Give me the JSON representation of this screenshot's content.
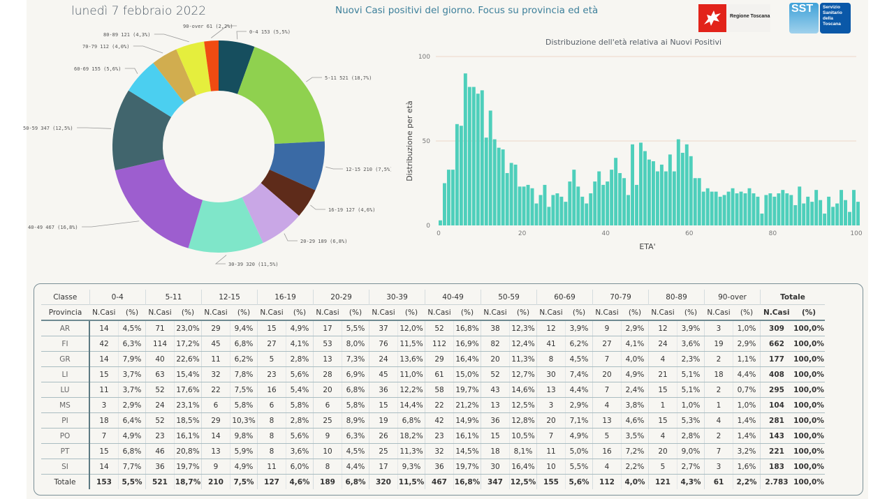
{
  "header": {
    "date": "lunedì 7 febbraio 2022",
    "title": "Nuovi Casi positivi del giorno. Focus su provincia ed età",
    "logo_regione": "Regione Toscana",
    "logo_sst_short": "SST",
    "logo_sst_lines": [
      "Servizio",
      "Sanitario",
      "della",
      "Toscana"
    ]
  },
  "chart_data": [
    {
      "type": "pie",
      "subtype": "donut",
      "title": "",
      "categories": [
        "0-4",
        "5-11",
        "12-15",
        "16-19",
        "20-29",
        "30-39",
        "40-49",
        "50-59",
        "60-69",
        "70-79",
        "80-89",
        "90-over"
      ],
      "values": [
        153,
        521,
        210,
        127,
        189,
        320,
        467,
        347,
        155,
        112,
        121,
        61
      ],
      "percent_labels": [
        "5,5%",
        "18,7%",
        "7,5%",
        "4,6%",
        "6,8%",
        "11,5%",
        "16,8%",
        "12,5%",
        "5,6%",
        "4,0%",
        "4,3%",
        "2,2%"
      ],
      "colors": [
        "#164e5e",
        "#8fd14f",
        "#3a6aa5",
        "#5e2b1a",
        "#c9a7e6",
        "#7fe6c9",
        "#9d5ecf",
        "#41656d",
        "#4bcff0",
        "#d1ad4f",
        "#e5ee3d",
        "#f04b12"
      ],
      "labels": [
        "0-4 153 (5,5%)",
        "5-11 521 (18,7%)",
        "12-15 210 (7,5%)",
        "16-19 127 (4,6%)",
        "20-29 189 (6,8%)",
        "30-39 320 (11,5%)",
        "40-49 467 (16,8%)",
        "50-59 347 (12,5%)",
        "60-69 155 (5,6%)",
        "70-79 112 (4,0%)",
        "80-89 121 (4,3%)",
        "90-over 61 (2,2%)"
      ]
    },
    {
      "type": "bar",
      "title": "Distribuzione dell'età relativa ai Nuovi Positivi",
      "xlabel": "ETA'",
      "ylabel": "Distribuzione per età",
      "xlim": [
        0,
        100
      ],
      "ylim": [
        0,
        100
      ],
      "xticks": [
        0,
        20,
        40,
        60,
        80,
        100
      ],
      "yticks": [
        0,
        50,
        100
      ],
      "grid": true,
      "color": "#4ecfbb",
      "x": [
        0,
        1,
        2,
        3,
        4,
        5,
        6,
        7,
        8,
        9,
        10,
        11,
        12,
        13,
        14,
        15,
        16,
        17,
        18,
        19,
        20,
        21,
        22,
        23,
        24,
        25,
        26,
        27,
        28,
        29,
        30,
        31,
        32,
        33,
        34,
        35,
        36,
        37,
        38,
        39,
        40,
        41,
        42,
        43,
        44,
        45,
        46,
        47,
        48,
        49,
        50,
        51,
        52,
        53,
        54,
        55,
        56,
        57,
        58,
        59,
        60,
        61,
        62,
        63,
        64,
        65,
        66,
        67,
        68,
        69,
        70,
        71,
        72,
        73,
        74,
        75,
        76,
        77,
        78,
        79,
        80,
        81,
        82,
        83,
        84,
        85,
        86,
        87,
        88,
        89,
        90,
        91,
        92,
        93,
        94,
        95,
        96,
        97,
        98,
        99,
        100
      ],
      "values": [
        3,
        25,
        33,
        33,
        60,
        59,
        90,
        82,
        82,
        78,
        80,
        52,
        68,
        51,
        46,
        45,
        31,
        37,
        36,
        23,
        23,
        24,
        22,
        13,
        18,
        24,
        11,
        18,
        19,
        17,
        14,
        26,
        33,
        23,
        17,
        13,
        19,
        26,
        32,
        24,
        26,
        33,
        40,
        31,
        28,
        18,
        48,
        24,
        49,
        44,
        39,
        38,
        32,
        36,
        32,
        42,
        32,
        51,
        43,
        48,
        41,
        28,
        28,
        20,
        22,
        20,
        20,
        17,
        18,
        20,
        22,
        19,
        20,
        19,
        22,
        19,
        17,
        7,
        18,
        19,
        17,
        19,
        21,
        19,
        18,
        12,
        23,
        13,
        17,
        14,
        21,
        15,
        7,
        17,
        11,
        13,
        21,
        15,
        8,
        21,
        14
      ]
    }
  ],
  "table": {
    "header_classe": "Classe",
    "header_provincia": "Provincia",
    "groups": [
      "0-4",
      "5-11",
      "12-15",
      "16-19",
      "20-29",
      "30-39",
      "40-49",
      "50-59",
      "60-69",
      "70-79",
      "80-89",
      "90-over"
    ],
    "total_group": "Totale",
    "sub_n": "N.Casi",
    "sub_p": "(%)",
    "rows": [
      {
        "prov": "AR",
        "cells": [
          [
            "14",
            "4,5%"
          ],
          [
            "71",
            "23,0%"
          ],
          [
            "29",
            "9,4%"
          ],
          [
            "15",
            "4,9%"
          ],
          [
            "17",
            "5,5%"
          ],
          [
            "37",
            "12,0%"
          ],
          [
            "52",
            "16,8%"
          ],
          [
            "38",
            "12,3%"
          ],
          [
            "12",
            "3,9%"
          ],
          [
            "9",
            "2,9%"
          ],
          [
            "12",
            "3,9%"
          ],
          [
            "3",
            "1,0%"
          ]
        ],
        "tot": [
          "309",
          "100,0%"
        ]
      },
      {
        "prov": "FI",
        "cells": [
          [
            "42",
            "6,3%"
          ],
          [
            "114",
            "17,2%"
          ],
          [
            "45",
            "6,8%"
          ],
          [
            "27",
            "4,1%"
          ],
          [
            "53",
            "8,0%"
          ],
          [
            "76",
            "11,5%"
          ],
          [
            "112",
            "16,9%"
          ],
          [
            "82",
            "12,4%"
          ],
          [
            "41",
            "6,2%"
          ],
          [
            "27",
            "4,1%"
          ],
          [
            "24",
            "3,6%"
          ],
          [
            "19",
            "2,9%"
          ]
        ],
        "tot": [
          "662",
          "100,0%"
        ]
      },
      {
        "prov": "GR",
        "cells": [
          [
            "14",
            "7,9%"
          ],
          [
            "40",
            "22,6%"
          ],
          [
            "11",
            "6,2%"
          ],
          [
            "5",
            "2,8%"
          ],
          [
            "13",
            "7,3%"
          ],
          [
            "24",
            "13,6%"
          ],
          [
            "29",
            "16,4%"
          ],
          [
            "20",
            "11,3%"
          ],
          [
            "8",
            "4,5%"
          ],
          [
            "7",
            "4,0%"
          ],
          [
            "4",
            "2,3%"
          ],
          [
            "2",
            "1,1%"
          ]
        ],
        "tot": [
          "177",
          "100,0%"
        ]
      },
      {
        "prov": "LI",
        "cells": [
          [
            "15",
            "3,7%"
          ],
          [
            "63",
            "15,4%"
          ],
          [
            "32",
            "7,8%"
          ],
          [
            "23",
            "5,6%"
          ],
          [
            "28",
            "6,9%"
          ],
          [
            "45",
            "11,0%"
          ],
          [
            "61",
            "15,0%"
          ],
          [
            "52",
            "12,7%"
          ],
          [
            "30",
            "7,4%"
          ],
          [
            "20",
            "4,9%"
          ],
          [
            "21",
            "5,1%"
          ],
          [
            "18",
            "4,4%"
          ]
        ],
        "tot": [
          "408",
          "100,0%"
        ]
      },
      {
        "prov": "LU",
        "cells": [
          [
            "11",
            "3,7%"
          ],
          [
            "52",
            "17,6%"
          ],
          [
            "22",
            "7,5%"
          ],
          [
            "16",
            "5,4%"
          ],
          [
            "20",
            "6,8%"
          ],
          [
            "36",
            "12,2%"
          ],
          [
            "58",
            "19,7%"
          ],
          [
            "43",
            "14,6%"
          ],
          [
            "13",
            "4,4%"
          ],
          [
            "7",
            "2,4%"
          ],
          [
            "15",
            "5,1%"
          ],
          [
            "2",
            "0,7%"
          ]
        ],
        "tot": [
          "295",
          "100,0%"
        ]
      },
      {
        "prov": "MS",
        "cells": [
          [
            "3",
            "2,9%"
          ],
          [
            "24",
            "23,1%"
          ],
          [
            "6",
            "5,8%"
          ],
          [
            "6",
            "5,8%"
          ],
          [
            "6",
            "5,8%"
          ],
          [
            "15",
            "14,4%"
          ],
          [
            "22",
            "21,2%"
          ],
          [
            "13",
            "12,5%"
          ],
          [
            "3",
            "2,9%"
          ],
          [
            "4",
            "3,8%"
          ],
          [
            "1",
            "1,0%"
          ],
          [
            "1",
            "1,0%"
          ]
        ],
        "tot": [
          "104",
          "100,0%"
        ]
      },
      {
        "prov": "PI",
        "cells": [
          [
            "18",
            "6,4%"
          ],
          [
            "52",
            "18,5%"
          ],
          [
            "29",
            "10,3%"
          ],
          [
            "8",
            "2,8%"
          ],
          [
            "25",
            "8,9%"
          ],
          [
            "19",
            "6,8%"
          ],
          [
            "42",
            "14,9%"
          ],
          [
            "36",
            "12,8%"
          ],
          [
            "20",
            "7,1%"
          ],
          [
            "13",
            "4,6%"
          ],
          [
            "15",
            "5,3%"
          ],
          [
            "4",
            "1,4%"
          ]
        ],
        "tot": [
          "281",
          "100,0%"
        ]
      },
      {
        "prov": "PO",
        "cells": [
          [
            "7",
            "4,9%"
          ],
          [
            "23",
            "16,1%"
          ],
          [
            "14",
            "9,8%"
          ],
          [
            "8",
            "5,6%"
          ],
          [
            "9",
            "6,3%"
          ],
          [
            "26",
            "18,2%"
          ],
          [
            "23",
            "16,1%"
          ],
          [
            "15",
            "10,5%"
          ],
          [
            "7",
            "4,9%"
          ],
          [
            "5",
            "3,5%"
          ],
          [
            "4",
            "2,8%"
          ],
          [
            "2",
            "1,4%"
          ]
        ],
        "tot": [
          "143",
          "100,0%"
        ]
      },
      {
        "prov": "PT",
        "cells": [
          [
            "15",
            "6,8%"
          ],
          [
            "46",
            "20,8%"
          ],
          [
            "13",
            "5,9%"
          ],
          [
            "8",
            "3,6%"
          ],
          [
            "10",
            "4,5%"
          ],
          [
            "25",
            "11,3%"
          ],
          [
            "32",
            "14,5%"
          ],
          [
            "18",
            "8,1%"
          ],
          [
            "11",
            "5,0%"
          ],
          [
            "16",
            "7,2%"
          ],
          [
            "20",
            "9,0%"
          ],
          [
            "7",
            "3,2%"
          ]
        ],
        "tot": [
          "221",
          "100,0%"
        ]
      },
      {
        "prov": "SI",
        "cells": [
          [
            "14",
            "7,7%"
          ],
          [
            "36",
            "19,7%"
          ],
          [
            "9",
            "4,9%"
          ],
          [
            "11",
            "6,0%"
          ],
          [
            "8",
            "4,4%"
          ],
          [
            "17",
            "9,3%"
          ],
          [
            "36",
            "19,7%"
          ],
          [
            "30",
            "16,4%"
          ],
          [
            "10",
            "5,5%"
          ],
          [
            "4",
            "2,2%"
          ],
          [
            "5",
            "2,7%"
          ],
          [
            "3",
            "1,6%"
          ]
        ],
        "tot": [
          "183",
          "100,0%"
        ]
      }
    ],
    "total_row": {
      "prov": "Totale",
      "cells": [
        [
          "153",
          "5,5%"
        ],
        [
          "521",
          "18,7%"
        ],
        [
          "210",
          "7,5%"
        ],
        [
          "127",
          "4,6%"
        ],
        [
          "189",
          "6,8%"
        ],
        [
          "320",
          "11,5%"
        ],
        [
          "467",
          "16,8%"
        ],
        [
          "347",
          "12,5%"
        ],
        [
          "155",
          "5,6%"
        ],
        [
          "112",
          "4,0%"
        ],
        [
          "121",
          "4,3%"
        ],
        [
          "61",
          "2,2%"
        ]
      ],
      "tot": [
        "2.783",
        "100,0%"
      ]
    }
  }
}
